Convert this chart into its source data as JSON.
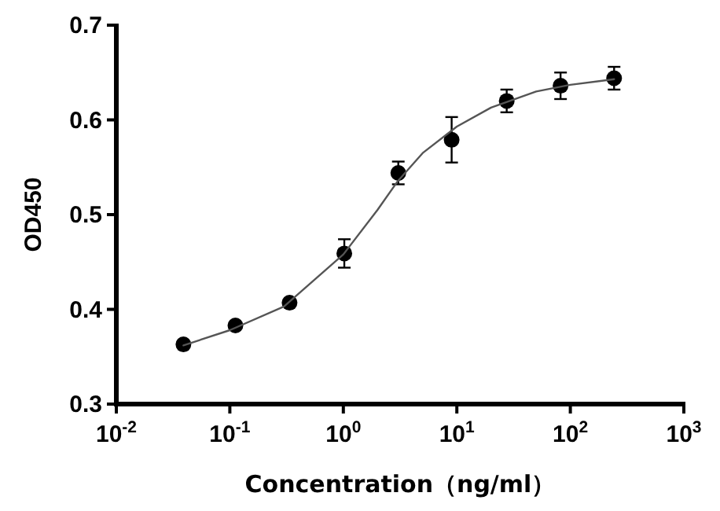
{
  "chart_data": {
    "type": "scatter",
    "xlabel": "Concentration（ng/ml）",
    "ylabel": "OD450",
    "log": "x",
    "xlim": [
      0.01,
      1000
    ],
    "ylim": [
      0.3,
      0.7
    ],
    "xticks": [
      {
        "value": 0.01,
        "label": "10$^{-2}$"
      },
      {
        "value": 0.1,
        "label": "10$^{-1}$"
      },
      {
        "value": 1,
        "label": "10$^{0}$"
      },
      {
        "value": 10,
        "label": "10$^{1}$"
      },
      {
        "value": 100,
        "label": "10$^{2}$"
      },
      {
        "value": 1000,
        "label": "10$^{3}$"
      }
    ],
    "yticks": [
      0.3,
      0.4,
      0.5,
      0.6,
      0.7
    ],
    "grid": false,
    "series": [
      {
        "type": "scatter",
        "color": "#000000",
        "marker": "circle",
        "x": [
          0.039,
          0.112,
          0.336,
          1.02,
          3.05,
          9.0,
          27.5,
          82,
          243
        ],
        "values": [
          0.363,
          0.383,
          0.407,
          0.459,
          0.544,
          0.579,
          0.62,
          0.636,
          0.644
        ],
        "errors": [
          null,
          null,
          null,
          0.015,
          0.012,
          0.024,
          0.012,
          0.014,
          0.012
        ]
      },
      {
        "type": "line",
        "color": "#555555",
        "marker": "none",
        "line_style": "solid",
        "x": [
          0.039,
          0.1,
          0.3,
          1,
          2,
          3,
          5,
          10,
          20,
          50,
          100,
          243
        ],
        "values": [
          0.362,
          0.378,
          0.403,
          0.458,
          0.505,
          0.535,
          0.565,
          0.593,
          0.613,
          0.63,
          0.637,
          0.643
        ]
      }
    ]
  }
}
